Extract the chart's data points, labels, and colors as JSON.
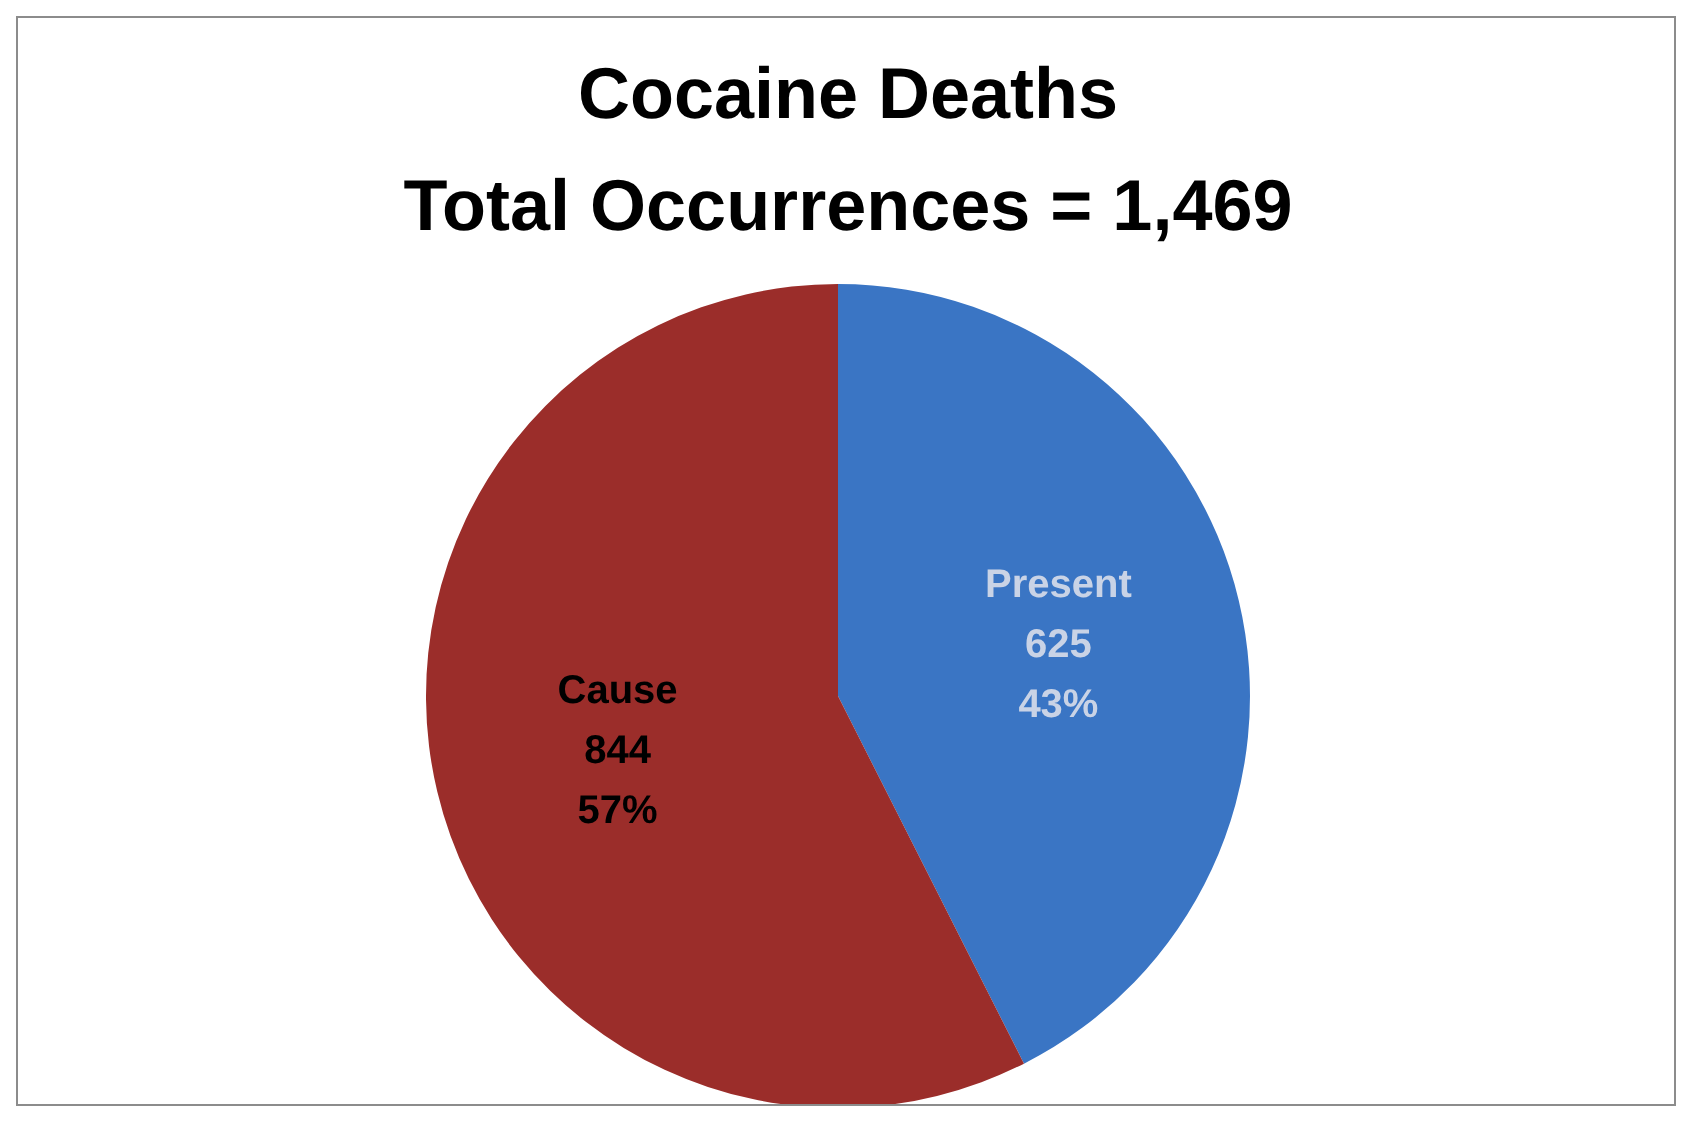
{
  "chart_data": {
    "type": "pie",
    "title": "Cocaine Deaths\nTotal Occurrences = 1,469",
    "categories": [
      "Present",
      "Cause"
    ],
    "values": [
      625,
      844
    ],
    "value_labels": [
      "625\n43%",
      "844\n57%"
    ],
    "colors": [
      "#3a75c4",
      "#9b2d2a"
    ]
  }
}
